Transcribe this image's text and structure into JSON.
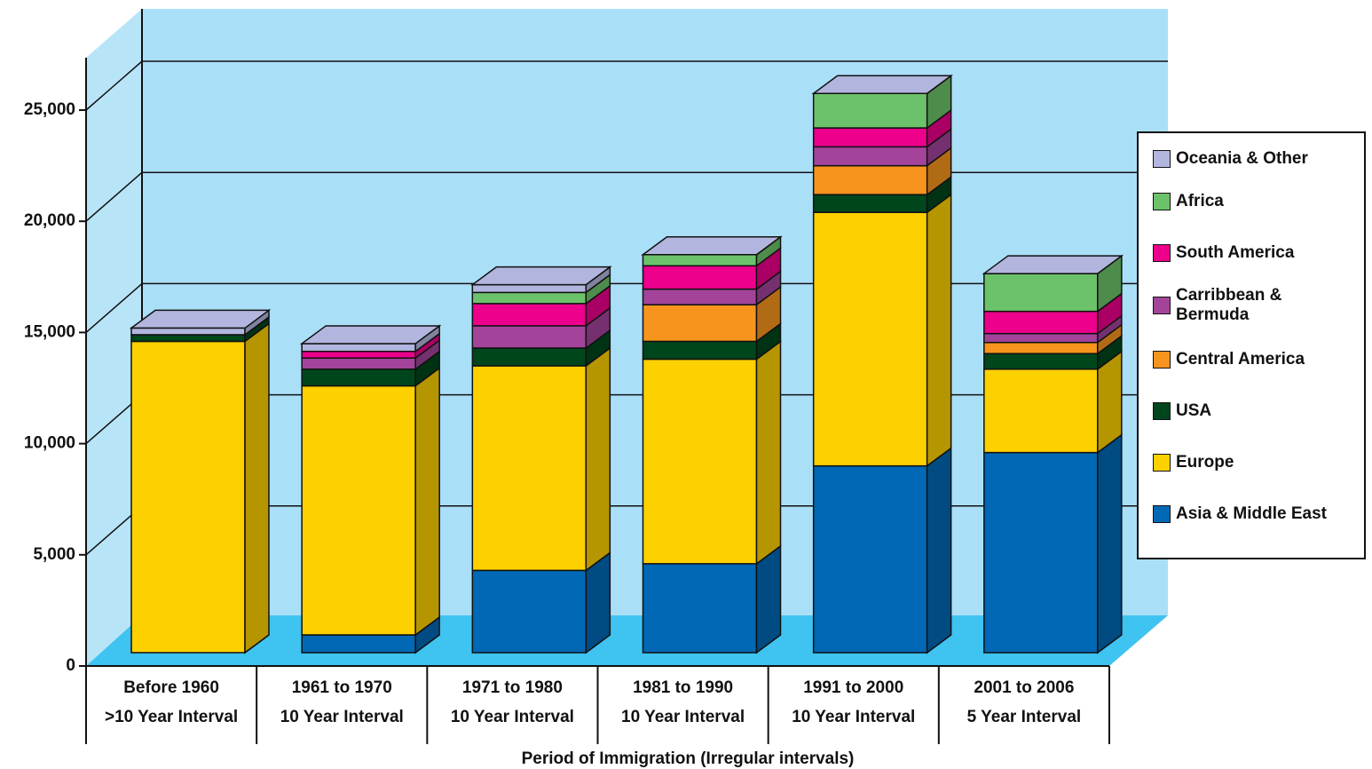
{
  "chart_data": {
    "type": "bar3d_stacked",
    "x_label": "Period of Immigration (Irregular intervals)",
    "categories": [
      [
        "Before 1960",
        ">10 Year Interval"
      ],
      [
        "1961 to 1970",
        "10 Year Interval"
      ],
      [
        "1971 to 1980",
        "10 Year Interval"
      ],
      [
        "1981 to 1990",
        "10 Year Interval"
      ],
      [
        "1991 to 2000",
        "10 Year Interval"
      ],
      [
        "2001 to 2006",
        "5 Year Interval"
      ]
    ],
    "series": [
      {
        "name": "Asia & Middle East",
        "color": "#0068b5",
        "values": [
          0,
          800,
          3700,
          4000,
          8400,
          9000
        ]
      },
      {
        "name": "Europe",
        "color": "#fdd000",
        "values": [
          14000,
          11200,
          9200,
          9200,
          11400,
          3750
        ]
      },
      {
        "name": "USA",
        "color": "#00461c",
        "values": [
          300,
          750,
          800,
          800,
          800,
          700
        ]
      },
      {
        "name": "Central America",
        "color": "#f7941d",
        "values": [
          0,
          0,
          0,
          1650,
          1300,
          500
        ]
      },
      {
        "name": "Carribbean & Bermuda",
        "color": "#a3449a",
        "values": [
          0,
          500,
          1000,
          700,
          850,
          400
        ]
      },
      {
        "name": "South America",
        "color": "#ec008c",
        "values": [
          0,
          300,
          1000,
          1050,
          850,
          1000
        ]
      },
      {
        "name": "Africa",
        "color": "#6cc26a",
        "values": [
          0,
          0,
          500,
          500,
          1550,
          1700
        ]
      },
      {
        "name": "Oceania & Other",
        "color": "#b2b6de",
        "values": [
          300,
          350,
          350,
          0,
          0,
          0
        ]
      }
    ],
    "ylim": [
      0,
      25000
    ],
    "yticks": [
      {
        "value": 0,
        "label": "0"
      },
      {
        "value": 5000,
        "label": "5,000"
      },
      {
        "value": 10000,
        "label": "10,000"
      },
      {
        "value": 15000,
        "label": "15,000"
      },
      {
        "value": 20000,
        "label": "20,000"
      },
      {
        "value": 25000,
        "label": "25,000"
      }
    ],
    "grid": true
  }
}
